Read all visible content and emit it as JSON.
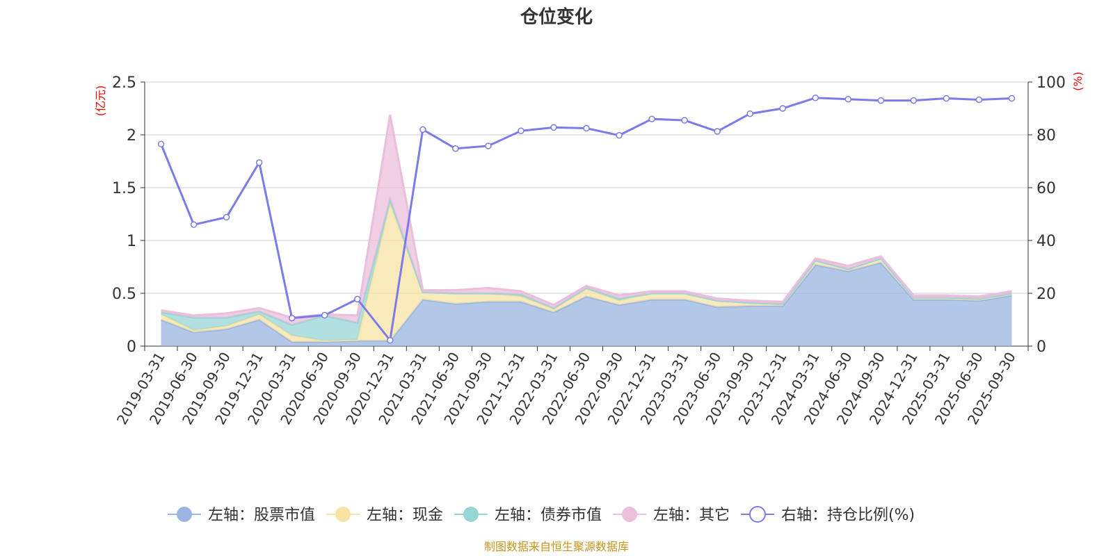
{
  "chart_data": {
    "type": "area",
    "title": "仓位变化",
    "y_left_unit": "(亿元)",
    "y_right_unit": "(%)",
    "ylim_left": [
      0,
      2.5
    ],
    "ylim_right": [
      0,
      100
    ],
    "y_left_ticks": [
      "0",
      "0.5",
      "1",
      "1.5",
      "2",
      "2.5"
    ],
    "y_right_ticks": [
      "0",
      "20",
      "40",
      "60",
      "80",
      "100"
    ],
    "grid": true,
    "categories": [
      "2019-03-31",
      "2019-06-30",
      "2019-09-30",
      "2019-12-31",
      "2020-03-31",
      "2020-06-30",
      "2020-09-30",
      "2020-12-31",
      "2021-03-31",
      "2021-06-30",
      "2021-09-30",
      "2021-12-31",
      "2022-03-31",
      "2022-06-30",
      "2022-09-30",
      "2022-12-31",
      "2023-03-31",
      "2023-06-30",
      "2023-09-30",
      "2023-12-31",
      "2024-03-31",
      "2024-06-30",
      "2024-09-30",
      "2024-12-31",
      "2025-03-31",
      "2025-06-30",
      "2025-09-30"
    ],
    "series": [
      {
        "name": "左轴：股票市值",
        "axis": "left",
        "kind": "stacked-area",
        "color": "#9ab5e1",
        "values": [
          0.25,
          0.13,
          0.16,
          0.25,
          0.04,
          0.04,
          0.05,
          0.05,
          0.44,
          0.4,
          0.42,
          0.42,
          0.32,
          0.47,
          0.39,
          0.44,
          0.44,
          0.37,
          0.38,
          0.38,
          0.77,
          0.71,
          0.79,
          0.44,
          0.44,
          0.43,
          0.48
        ]
      },
      {
        "name": "左轴：现金",
        "axis": "left",
        "kind": "stacked-area",
        "color": "#f7e3a4",
        "values": [
          0.05,
          0.02,
          0.03,
          0.05,
          0.06,
          0.01,
          0.01,
          1.3,
          0.07,
          0.1,
          0.08,
          0.05,
          0.03,
          0.07,
          0.04,
          0.06,
          0.06,
          0.06,
          0.03,
          0.02,
          0.04,
          0.02,
          0.04,
          0.02,
          0.02,
          0.02,
          0.02
        ]
      },
      {
        "name": "左轴：债券市值",
        "axis": "left",
        "kind": "stacked-area",
        "color": "#98d5d7",
        "values": [
          0.02,
          0.12,
          0.08,
          0.03,
          0.1,
          0.24,
          0.16,
          0.04,
          0.0,
          0.0,
          0.0,
          0.02,
          0.01,
          0.01,
          0.02,
          0.0,
          0.0,
          0.0,
          0.0,
          0.0,
          0.0,
          0.0,
          0.0,
          0.0,
          0.0,
          0.0,
          0.0
        ]
      },
      {
        "name": "左轴：其它",
        "axis": "left",
        "kind": "stacked-area",
        "color": "#ebbedb",
        "values": [
          0.02,
          0.02,
          0.04,
          0.03,
          0.07,
          0.01,
          0.07,
          0.8,
          0.02,
          0.03,
          0.05,
          0.03,
          0.03,
          0.02,
          0.03,
          0.02,
          0.02,
          0.02,
          0.02,
          0.02,
          0.02,
          0.03,
          0.02,
          0.02,
          0.02,
          0.02,
          0.02
        ]
      },
      {
        "name": "右轴：持仓比例(%)",
        "axis": "right",
        "kind": "line",
        "color": "#7b7be9",
        "values": [
          76.5,
          46.0,
          48.8,
          69.5,
          10.6,
          11.7,
          17.8,
          2.2,
          82.0,
          74.8,
          75.8,
          81.5,
          82.8,
          82.5,
          79.8,
          86.0,
          85.5,
          81.3,
          88.0,
          90.0,
          94.0,
          93.5,
          93.0,
          93.0,
          93.8,
          93.3,
          93.8
        ]
      }
    ],
    "legend_position": "bottom"
  },
  "source": "制图数据来自恒生聚源数据库"
}
